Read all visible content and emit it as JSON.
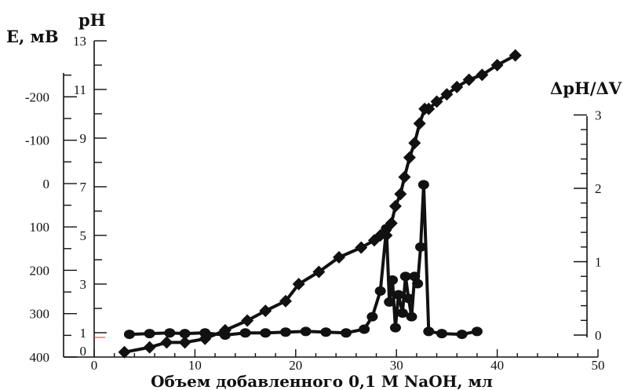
{
  "chart_data": {
    "type": "line",
    "xlabel": "Объем добавленного 0,1 М NaOH, мл",
    "x_ticks": [
      "0",
      "10",
      "20",
      "30",
      "40",
      "50"
    ],
    "xlim": [
      0,
      50
    ],
    "axes": {
      "E": {
        "label": "Е, мВ",
        "ticks": [
          "-200",
          "-100",
          "0",
          "100",
          "200",
          "300",
          "400"
        ],
        "lim": [
          400,
          -255
        ],
        "side": "left"
      },
      "pH": {
        "label": "pH",
        "ticks": [
          "1",
          "3",
          "5",
          "7",
          "9",
          "11",
          "13"
        ],
        "lim": [
          0,
          13
        ],
        "side": "left"
      },
      "dpH": {
        "label": "ΔpH/ΔV",
        "ticks": [
          "0",
          "1",
          "2",
          "3"
        ],
        "lim": [
          -0.05,
          3
        ],
        "side": "right"
      }
    },
    "series": [
      {
        "marker": "diamond",
        "axis": "pH",
        "x": [
          3,
          5.5,
          7.2,
          9,
          11,
          13,
          15.2,
          17,
          19,
          20.3,
          22.3,
          24.3,
          26.5,
          27.8,
          28.4,
          29,
          29.5,
          29.9,
          30.4,
          30.8,
          31.3,
          31.8,
          32.3,
          32.8,
          33.2,
          34,
          35,
          36,
          37.2,
          38.5,
          40,
          41.8
        ],
        "y": [
          0.2,
          0.4,
          0.6,
          0.6,
          0.75,
          1.1,
          1.5,
          1.9,
          2.3,
          3,
          3.5,
          4.1,
          4.5,
          4.8,
          5,
          5,
          5.5,
          6.2,
          6.7,
          7.4,
          8.2,
          8.8,
          9.6,
          10.2,
          10.2,
          10.5,
          10.8,
          11.1,
          11.4,
          11.6,
          12,
          12.4
        ]
      },
      {
        "marker": "circle",
        "axis": "dpH",
        "x": [
          3.5,
          5.5,
          7.5,
          9,
          11,
          13,
          15,
          17,
          19,
          21,
          23,
          25,
          26.8,
          27.6,
          28.4,
          29,
          29.3,
          29.6,
          29.9,
          30.2,
          30.6,
          30.9,
          31.2,
          31.5,
          31.8,
          32.1,
          32.4,
          32.7,
          33.2,
          34.5,
          36.5,
          38
        ],
        "y": [
          0.01,
          0.02,
          0.03,
          0.02,
          0.03,
          0,
          0.03,
          0.03,
          0.04,
          0.05,
          0.04,
          0.03,
          0.08,
          0.25,
          0.6,
          1.45,
          0.45,
          0.75,
          0.1,
          0.55,
          0.3,
          0.8,
          0.5,
          0.25,
          0.8,
          0.7,
          1.2,
          2.05,
          0.05,
          0.02,
          0.01,
          0.05
        ]
      }
    ]
  }
}
